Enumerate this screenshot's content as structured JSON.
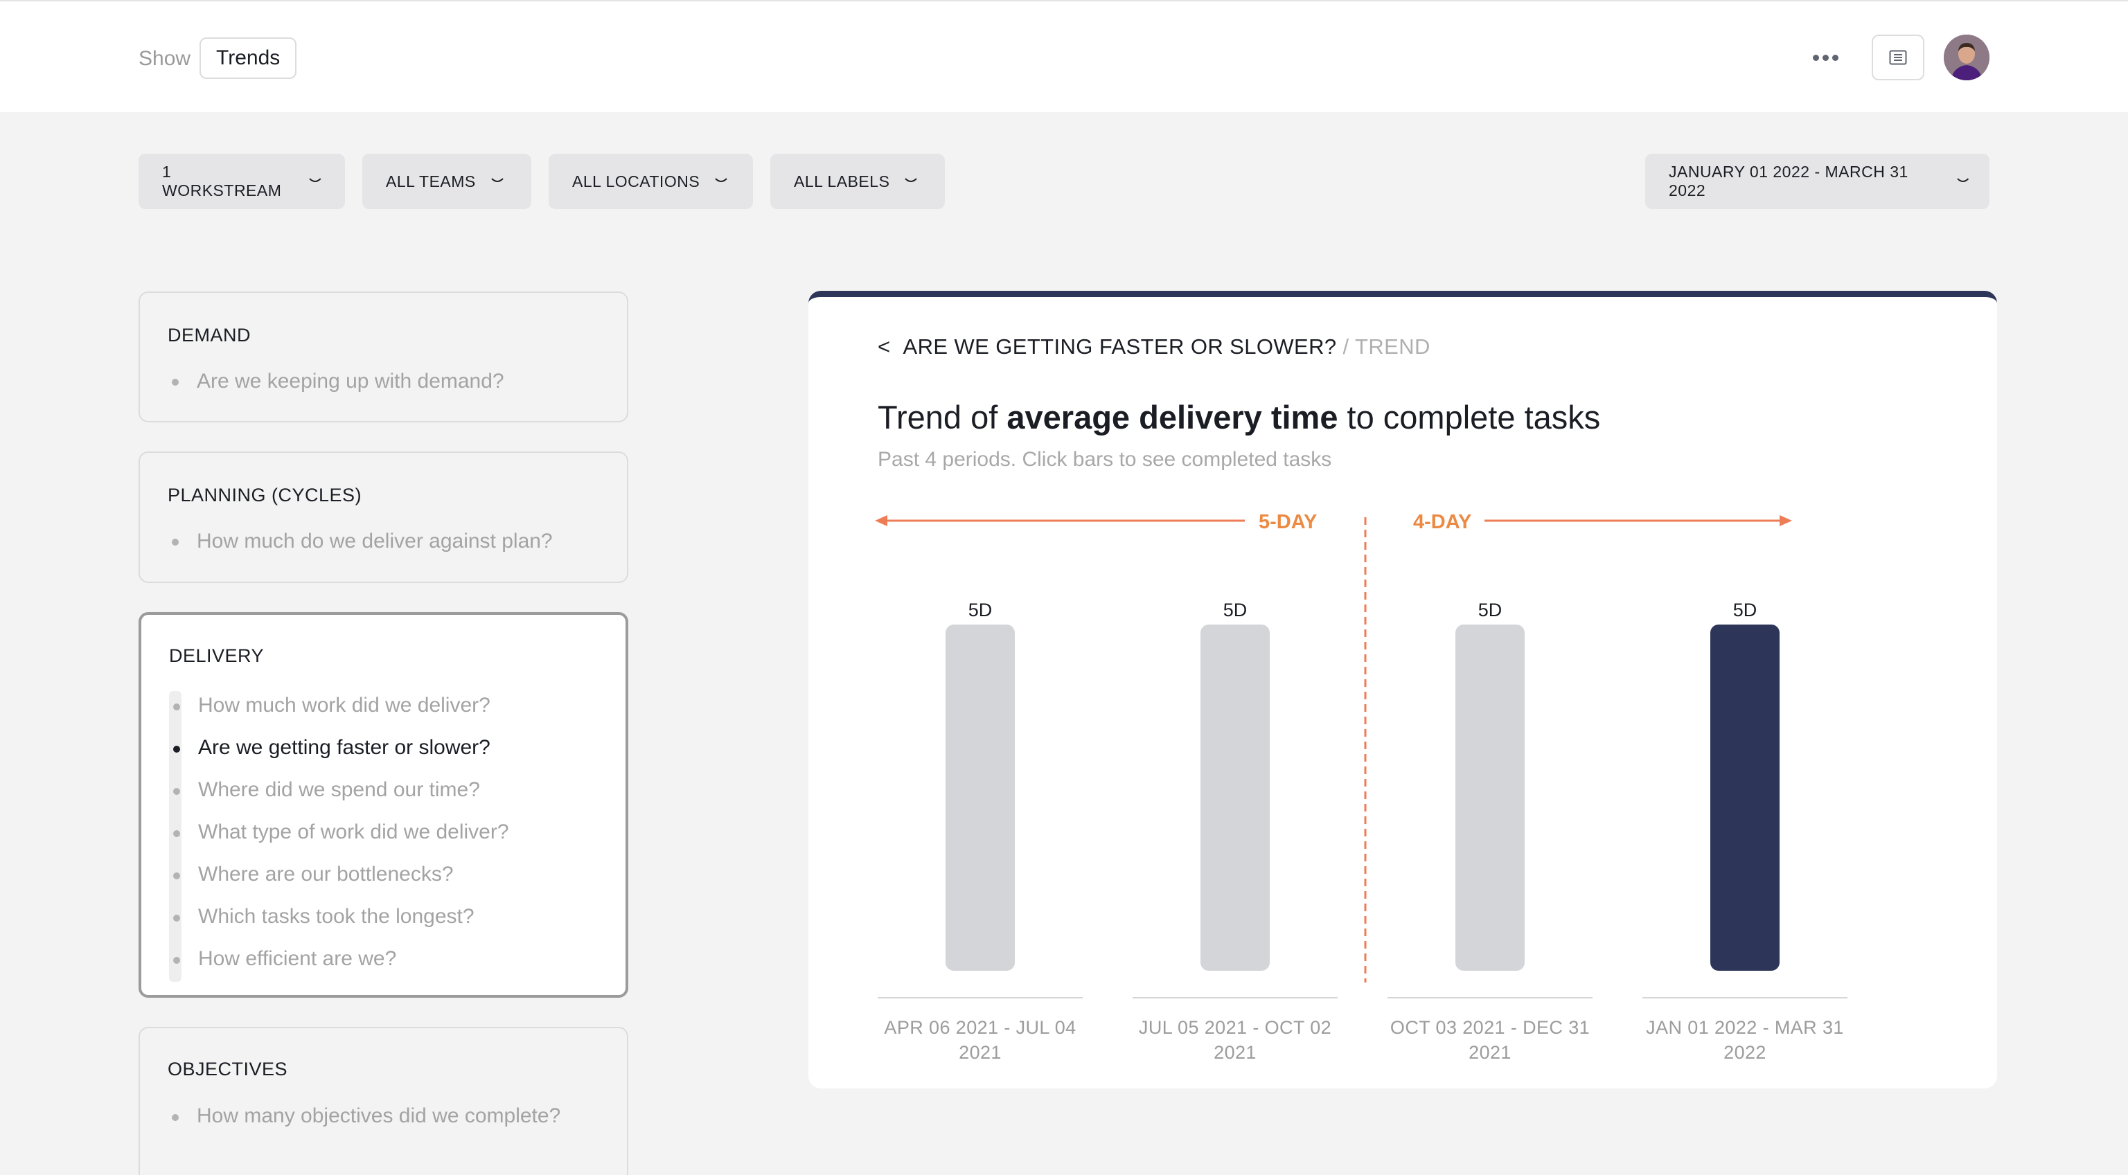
{
  "header": {
    "show_label": "Show",
    "view_value": "Trends"
  },
  "filters": {
    "workstream": "1 WORKSTREAM",
    "teams": "ALL TEAMS",
    "locations": "ALL LOCATIONS",
    "labels": "ALL LABELS",
    "date_range": "JANUARY 01 2022 - MARCH 31 2022"
  },
  "sidebar": {
    "demand": {
      "title": "DEMAND",
      "questions": [
        "Are we keeping up with demand?"
      ]
    },
    "planning": {
      "title": "PLANNING (CYCLES)",
      "questions": [
        "How much do we deliver against plan?"
      ]
    },
    "delivery": {
      "title": "DELIVERY",
      "questions": [
        "How much work did we deliver?",
        "Are we getting faster or slower?",
        "Where did we spend our time?",
        "What type of work did we deliver?",
        "Where are our bottlenecks?",
        "Which tasks took the longest?",
        "How efficient are we?"
      ],
      "selected_index": 1
    },
    "objectives": {
      "title": "OBJECTIVES",
      "questions": [
        "How many objectives did we complete?"
      ]
    }
  },
  "panel": {
    "back_glyph": "<",
    "crumb_main": "ARE WE GETTING FASTER OR SLOWER?",
    "crumb_sub": " / TREND",
    "headline_pre": "Trend of ",
    "headline_bold": "average delivery time",
    "headline_post": " to complete tasks",
    "subtitle": "Past 4 periods. Click bars to see completed tasks"
  },
  "chart_data": {
    "type": "bar",
    "categories": [
      [
        "APR 06 2021 - JUL 04",
        "2021"
      ],
      [
        "JUL 05 2021 - OCT 02",
        "2021"
      ],
      [
        "OCT 03 2021 - DEC 31",
        "2021"
      ],
      [
        "JAN 01 2022 - MAR 31",
        "2022"
      ]
    ],
    "values": [
      5,
      5,
      5,
      5
    ],
    "value_labels": [
      "5D",
      "5D",
      "5D",
      "5D"
    ],
    "highlight_index": 3,
    "ylim": [
      0,
      5
    ],
    "grid": false,
    "annotations": {
      "left_label": "5-DAY",
      "right_label": "4-DAY",
      "divider_after_index": 1
    },
    "colors": {
      "bar": "#d4d5d8",
      "highlight": "#2d3558",
      "annotation": "#ee7d55",
      "annotation_text": "#ec8a44",
      "axis": "#d6d6d6",
      "value_label": "#1b1d24",
      "category_label": "#9c9c9c"
    }
  }
}
